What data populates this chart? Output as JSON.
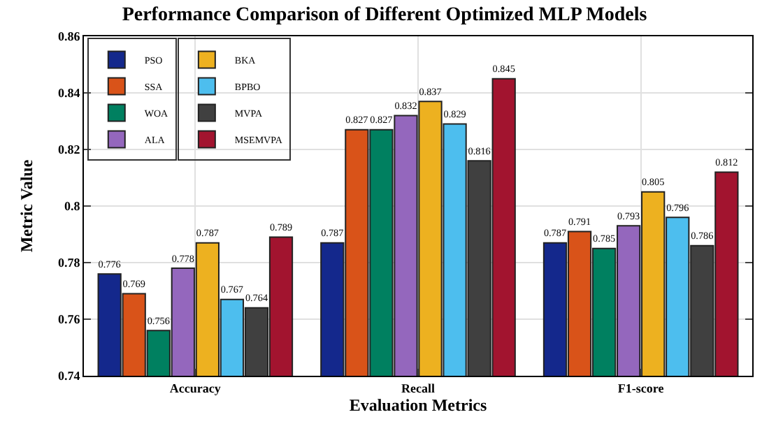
{
  "chart_data": {
    "type": "bar",
    "title": "Performance Comparison of Different Optimized MLP Models",
    "xlabel": "Evaluation Metrics",
    "ylabel": "Metric Value",
    "categories": [
      "Accuracy",
      "Recall",
      "F1-score"
    ],
    "series": [
      {
        "name": "PSO",
        "color": "#14288c",
        "values": [
          0.776,
          0.787,
          0.787
        ]
      },
      {
        "name": "SSA",
        "color": "#d95319",
        "values": [
          0.769,
          0.827,
          0.791
        ]
      },
      {
        "name": "WOA",
        "color": "#008060",
        "values": [
          0.756,
          0.827,
          0.785
        ]
      },
      {
        "name": "ALA",
        "color": "#9467bd",
        "values": [
          0.778,
          0.832,
          0.793
        ]
      },
      {
        "name": "BKA",
        "color": "#edb120",
        "values": [
          0.787,
          0.837,
          0.805
        ]
      },
      {
        "name": "BPBO",
        "color": "#4dbeee",
        "values": [
          0.767,
          0.829,
          0.796
        ]
      },
      {
        "name": "MVPA",
        "color": "#404040",
        "values": [
          0.764,
          0.816,
          0.786
        ]
      },
      {
        "name": "MSEMVPA",
        "color": "#a2142f",
        "values": [
          0.789,
          0.845,
          0.812
        ]
      }
    ],
    "ylim": [
      0.74,
      0.86
    ],
    "yticks": [
      0.74,
      0.76,
      0.78,
      0.8,
      0.82,
      0.84,
      0.86
    ],
    "grid": true,
    "legend": "top left",
    "data_labels": true
  }
}
